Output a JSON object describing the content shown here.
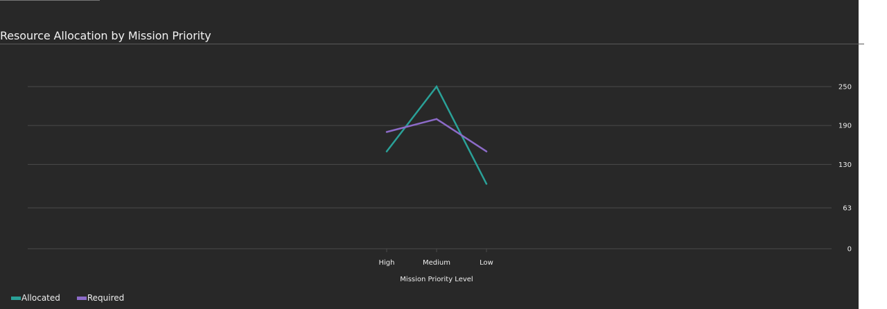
{
  "chart_data": {
    "type": "line",
    "title": "Resource Allocation by Mission Priority",
    "xlabel": "Mission Priority Level",
    "ylabel": "",
    "categories": [
      "High",
      "Medium",
      "Low"
    ],
    "series": [
      {
        "name": "Allocated",
        "values": [
          150,
          250,
          100
        ],
        "color": "#2aa198"
      },
      {
        "name": "Required",
        "values": [
          180,
          200,
          150
        ],
        "color": "#8c6bc8"
      }
    ],
    "ylim": [
      0,
      250
    ],
    "yticks": [
      0,
      63,
      130,
      190,
      250
    ],
    "y_axis_side": "right",
    "grid": true,
    "legend_position": "bottom-left",
    "background": "#282828",
    "gridline_color": "#4a4a4a",
    "text_color": "#eeeeee"
  }
}
